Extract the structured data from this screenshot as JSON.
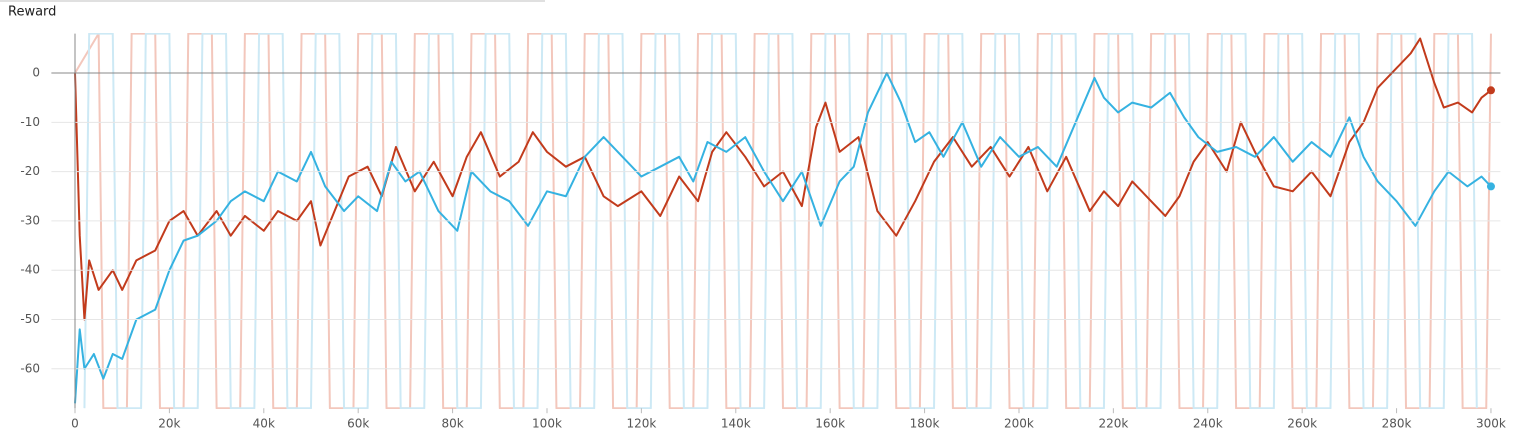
{
  "chart_data": {
    "type": "line",
    "title": "Reward",
    "xlim": [
      -5000,
      302000
    ],
    "ylim": [
      -68,
      8
    ],
    "xticks": [
      0,
      {
        "value": 20000,
        "label": "20k"
      },
      {
        "value": 40000,
        "label": "40k"
      },
      {
        "value": 60000,
        "label": "60k"
      },
      {
        "value": 80000,
        "label": "80k"
      },
      {
        "value": 100000,
        "label": "100k"
      },
      {
        "value": 120000,
        "label": "120k"
      },
      {
        "value": 140000,
        "label": "140k"
      },
      {
        "value": 160000,
        "label": "160k"
      },
      {
        "value": 180000,
        "label": "180k"
      },
      {
        "value": 200000,
        "label": "200k"
      },
      {
        "value": 220000,
        "label": "220k"
      },
      {
        "value": 240000,
        "label": "240k"
      },
      {
        "value": 260000,
        "label": "260k"
      },
      {
        "value": 280000,
        "label": "280k"
      },
      {
        "value": 300000,
        "label": "300k"
      }
    ],
    "yticks": [
      0,
      -10,
      -20,
      -30,
      -40,
      -50,
      -60
    ],
    "grid": true,
    "series": [
      {
        "color": "#f3c7bc",
        "width": 2,
        "x": [
          0,
          5000,
          6000,
          11000,
          12000,
          17000,
          18000,
          23000,
          24000,
          29000,
          30000,
          35000,
          36000,
          41000,
          42000,
          47000,
          48000,
          53000,
          54000,
          59000,
          60000,
          65000,
          66000,
          71000,
          72000,
          77000,
          78000,
          83000,
          84000,
          89000,
          90000,
          95000,
          96000,
          101000,
          102000,
          107000,
          108000,
          113000,
          114000,
          119000,
          120000,
          125000,
          126000,
          131000,
          132000,
          137000,
          138000,
          143000,
          144000,
          149000,
          150000,
          155000,
          156000,
          161000,
          162000,
          167000,
          168000,
          173000,
          174000,
          179000,
          180000,
          185000,
          186000,
          191000,
          192000,
          197000,
          198000,
          203000,
          204000,
          209000,
          210000,
          215000,
          216000,
          221000,
          222000,
          227000,
          228000,
          233000,
          234000,
          239000,
          240000,
          245000,
          246000,
          251000,
          252000,
          257000,
          258000,
          263000,
          264000,
          269000,
          270000,
          275000,
          276000,
          281000,
          282000,
          287000,
          288000,
          293000,
          294000,
          299000,
          300000
        ],
        "values": [
          0,
          8,
          -68,
          -68,
          8,
          8,
          -68,
          -68,
          8,
          8,
          -68,
          -68,
          8,
          8,
          -68,
          -68,
          8,
          8,
          -68,
          -68,
          8,
          8,
          -68,
          -68,
          8,
          8,
          -68,
          -68,
          8,
          8,
          -68,
          -68,
          8,
          8,
          -68,
          -68,
          8,
          8,
          -68,
          -68,
          8,
          8,
          -68,
          -68,
          8,
          8,
          -68,
          -68,
          8,
          8,
          -68,
          -68,
          8,
          8,
          -68,
          -68,
          8,
          8,
          -68,
          -68,
          8,
          8,
          -68,
          -68,
          8,
          8,
          -68,
          -68,
          8,
          8,
          -68,
          -68,
          8,
          8,
          -68,
          -68,
          8,
          8,
          -68,
          -68,
          8,
          8,
          -68,
          -68,
          8,
          8,
          -68,
          -68,
          8,
          8,
          -68,
          -68,
          8,
          8,
          -68,
          -68,
          8,
          8,
          -68,
          -68,
          8
        ]
      },
      {
        "color": "#cde9f5",
        "width": 2,
        "x": [
          2000,
          3000,
          8000,
          9000,
          14000,
          15000,
          20000,
          21000,
          26000,
          27000,
          32000,
          33000,
          38000,
          39000,
          44000,
          45000,
          50000,
          51000,
          56000,
          57000,
          62000,
          63000,
          68000,
          69000,
          74000,
          75000,
          80000,
          81000,
          86000,
          87000,
          92000,
          93000,
          98000,
          99000,
          104000,
          105000,
          110000,
          111000,
          116000,
          117000,
          122000,
          123000,
          128000,
          129000,
          134000,
          135000,
          140000,
          141000,
          146000,
          147000,
          152000,
          153000,
          158000,
          159000,
          164000,
          165000,
          170000,
          171000,
          176000,
          177000,
          182000,
          183000,
          188000,
          189000,
          194000,
          195000,
          200000,
          201000,
          206000,
          207000,
          212000,
          213000,
          218000,
          219000,
          224000,
          225000,
          230000,
          231000,
          236000,
          237000,
          242000,
          243000,
          248000,
          249000,
          254000,
          255000,
          260000,
          261000,
          266000,
          267000,
          272000,
          273000,
          278000,
          279000,
          284000,
          285000,
          290000,
          291000,
          296000,
          297000
        ],
        "values": [
          -68,
          8,
          8,
          -68,
          -68,
          8,
          8,
          -68,
          -68,
          8,
          8,
          -68,
          -68,
          8,
          8,
          -68,
          -68,
          8,
          8,
          -68,
          -68,
          8,
          8,
          -68,
          -68,
          8,
          8,
          -68,
          -68,
          8,
          8,
          -68,
          -68,
          8,
          8,
          -68,
          -68,
          8,
          8,
          -68,
          -68,
          8,
          8,
          -68,
          -68,
          8,
          8,
          -68,
          -68,
          8,
          8,
          -68,
          -68,
          8,
          8,
          -68,
          -68,
          8,
          8,
          -68,
          -68,
          8,
          8,
          -68,
          -68,
          8,
          8,
          -68,
          -68,
          8,
          8,
          -68,
          -68,
          8,
          8,
          -68,
          -68,
          8,
          8,
          -68,
          -68,
          8,
          8,
          -68,
          -68,
          8,
          8,
          -68,
          -68,
          8,
          8,
          -68,
          -68,
          8,
          8,
          -68,
          -68,
          8,
          8,
          -68
        ]
      },
      {
        "color": "#c23b1c",
        "width": 2,
        "end_marker": true,
        "x": [
          0,
          1000,
          2000,
          3000,
          5000,
          8000,
          10000,
          13000,
          17000,
          20000,
          23000,
          26000,
          30000,
          33000,
          36000,
          40000,
          43000,
          47000,
          50000,
          52000,
          55000,
          58000,
          62000,
          65000,
          68000,
          72000,
          76000,
          80000,
          83000,
          86000,
          90000,
          94000,
          97000,
          100000,
          104000,
          108000,
          112000,
          115000,
          120000,
          124000,
          128000,
          132000,
          135000,
          138000,
          142000,
          146000,
          150000,
          154000,
          157000,
          159000,
          162000,
          166000,
          170000,
          174000,
          178000,
          182000,
          186000,
          190000,
          194000,
          198000,
          202000,
          206000,
          210000,
          215000,
          218000,
          221000,
          224000,
          228000,
          231000,
          234000,
          237000,
          240000,
          244000,
          247000,
          250000,
          254000,
          258000,
          262000,
          266000,
          270000,
          273000,
          276000,
          280000,
          283000,
          285000,
          288000,
          290000,
          293000,
          296000,
          298000,
          300000
        ],
        "values": [
          0,
          -33,
          -50,
          -38,
          -44,
          -40,
          -44,
          -38,
          -36,
          -30,
          -28,
          -33,
          -28,
          -33,
          -29,
          -32,
          -28,
          -30,
          -26,
          -35,
          -28,
          -21,
          -19,
          -25,
          -15,
          -24,
          -18,
          -25,
          -17,
          -12,
          -21,
          -18,
          -12,
          -16,
          -19,
          -17,
          -25,
          -27,
          -24,
          -29,
          -21,
          -26,
          -16,
          -12,
          -17,
          -23,
          -20,
          -27,
          -11,
          -6,
          -16,
          -13,
          -28,
          -33,
          -26,
          -18,
          -13,
          -19,
          -15,
          -21,
          -15,
          -24,
          -17,
          -28,
          -24,
          -27,
          -22,
          -26,
          -29,
          -25,
          -18,
          -14,
          -20,
          -10,
          -16,
          -23,
          -24,
          -20,
          -25,
          -14,
          -10,
          -3,
          1,
          4,
          7,
          -2,
          -7,
          -6,
          -8,
          -5,
          -3.5
        ]
      },
      {
        "color": "#35b2e1",
        "width": 2,
        "end_marker": true,
        "x": [
          0,
          1000,
          2000,
          4000,
          6000,
          8000,
          10000,
          13000,
          17000,
          20000,
          23000,
          26000,
          30000,
          33000,
          36000,
          40000,
          43000,
          47000,
          50000,
          53000,
          57000,
          60000,
          64000,
          67000,
          70000,
          73000,
          77000,
          81000,
          84000,
          88000,
          92000,
          96000,
          100000,
          104000,
          108000,
          112000,
          116000,
          120000,
          124000,
          128000,
          131000,
          134000,
          138000,
          142000,
          146000,
          150000,
          154000,
          158000,
          162000,
          165000,
          168000,
          172000,
          175000,
          178000,
          181000,
          184000,
          188000,
          192000,
          196000,
          200000,
          204000,
          208000,
          212000,
          216000,
          218000,
          221000,
          224000,
          228000,
          232000,
          235000,
          238000,
          242000,
          246000,
          250000,
          254000,
          258000,
          262000,
          266000,
          270000,
          273000,
          276000,
          280000,
          284000,
          288000,
          291000,
          295000,
          298000,
          300000
        ],
        "values": [
          -67,
          -52,
          -60,
          -57,
          -62,
          -57,
          -58,
          -50,
          -48,
          -40,
          -34,
          -33,
          -30,
          -26,
          -24,
          -26,
          -20,
          -22,
          -16,
          -23,
          -28,
          -25,
          -28,
          -18,
          -22,
          -20,
          -28,
          -32,
          -20,
          -24,
          -26,
          -31,
          -24,
          -25,
          -17,
          -13,
          -17,
          -21,
          -19,
          -17,
          -22,
          -14,
          -16,
          -13,
          -20,
          -26,
          -20,
          -31,
          -22,
          -19,
          -8,
          0,
          -6,
          -14,
          -12,
          -17,
          -10,
          -19,
          -13,
          -17,
          -15,
          -19,
          -10,
          -1,
          -5,
          -8,
          -6,
          -7,
          -4,
          -9,
          -13,
          -16,
          -15,
          -17,
          -13,
          -18,
          -14,
          -17,
          -9,
          -17,
          -22,
          -26,
          -31,
          -24,
          -20,
          -23,
          -21,
          -23
        ]
      }
    ]
  }
}
